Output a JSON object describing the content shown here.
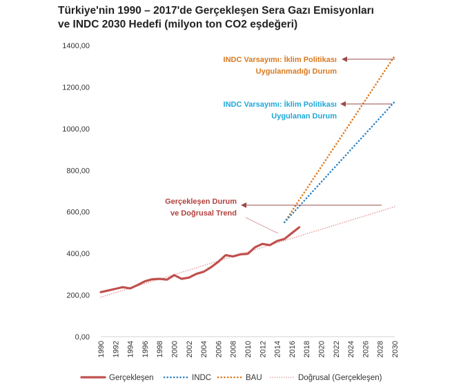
{
  "title_line1": "Türkiye'nin 1990 – 2017'de Gerçekleşen Sera Gazı Emisyonları",
  "title_line2": "ve INDC 2030 Hedefi (milyon ton CO2 eşdeğeri)",
  "colors": {
    "actual": "#c0504d",
    "indc": "#2e84c5",
    "bau": "#e07a1e",
    "trend": "#e59a9a",
    "indc_label": "#1fa7d8",
    "bau_label": "#d9781e",
    "actual_label": "#b0413e",
    "arrow": "#9b4a48"
  },
  "chart_data": {
    "type": "line",
    "title": "Türkiye'nin 1990 – 2017'de Gerçekleşen Sera Gazı Emisyonları ve INDC 2030 Hedefi (milyon ton CO2 eşdeğeri)",
    "ylim": [
      0,
      1400
    ],
    "yticks": [
      "0,00",
      "200,00",
      "400,00",
      "600,00",
      "800,00",
      "1000,00",
      "1200,00",
      "1400,00"
    ],
    "xlim": [
      1990,
      2030
    ],
    "xticks": [
      "1990",
      "1992",
      "1994",
      "1996",
      "1998",
      "2000",
      "2002",
      "2004",
      "2006",
      "2008",
      "2010",
      "2012",
      "2014",
      "2016",
      "2018",
      "2020",
      "2022",
      "2024",
      "2026",
      "2028",
      "2030"
    ],
    "grid": false,
    "legend_position": "bottom",
    "series": [
      {
        "name": "Gerçekleşen",
        "style": "solid",
        "x": [
          1990,
          1991,
          1992,
          1993,
          1994,
          1995,
          1996,
          1997,
          1998,
          1999,
          2000,
          2001,
          2002,
          2003,
          2004,
          2005,
          2006,
          2007,
          2008,
          2009,
          2010,
          2011,
          2012,
          2013,
          2014,
          2015,
          2016,
          2017
        ],
        "y": [
          214,
          222,
          230,
          238,
          232,
          248,
          266,
          276,
          278,
          274,
          296,
          278,
          284,
          302,
          312,
          334,
          360,
          392,
          386,
          396,
          398,
          430,
          446,
          440,
          460,
          470,
          498,
          526
        ]
      },
      {
        "name": "INDC",
        "style": "dotted",
        "x": [
          2015,
          2030
        ],
        "y": [
          550,
          1130
        ]
      },
      {
        "name": "BAU",
        "style": "dotted",
        "x": [
          2015,
          2030
        ],
        "y": [
          550,
          1350
        ]
      },
      {
        "name": "Doğrusal (Gerçekleşen)",
        "style": "dotted",
        "x": [
          1990,
          2030
        ],
        "y": [
          190,
          625
        ]
      }
    ],
    "annotations": [
      {
        "line1": "INDC Varsayımı: İklim Politikası",
        "line2": "Uygulanmadığı Durum",
        "target_series": "BAU",
        "x": 2030,
        "y": 1350
      },
      {
        "line1": "INDC Varsayımı: İklim Politikası",
        "line2": "Uygulanan Durum",
        "target_series": "INDC",
        "x": 2030,
        "y": 1130
      },
      {
        "line1": "Gerçekleşen Durum",
        "line2": "ve Doğrusal Trend",
        "target_series": "Gerçekleşen",
        "x": 2028,
        "y": 630
      }
    ]
  }
}
